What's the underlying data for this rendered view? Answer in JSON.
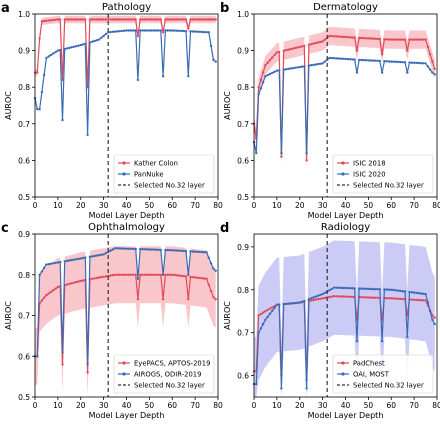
{
  "figure": {
    "x_tick_labels": [
      "0",
      "10",
      "20",
      "30",
      "40",
      "50",
      "60",
      "70",
      "80"
    ],
    "y_tick_labels": [
      "0.5",
      "0.6",
      "0.7",
      "0.8",
      "0.9",
      "1.0"
    ]
  },
  "colors": {
    "red": "#e24a5a",
    "red_band": "#f4a0a8",
    "blue": "#3a6bb5",
    "blue_band": "#a8a8f0",
    "selected_line": "#333333"
  },
  "chart_data": [
    {
      "type": "line",
      "panel_letter": "a",
      "title": "Pathology",
      "xlabel": "Model Layer Depth",
      "ylabel": "AUROC",
      "xlim": [
        0,
        80
      ],
      "ylim": [
        0.5,
        1.0
      ],
      "legend": "bottom-right",
      "grid": false,
      "band_series": "Kather Colon",
      "dip_layers": [
        1,
        12,
        23,
        45,
        56,
        67
      ],
      "selected_layer": 32,
      "selected_label": "Selected No.32 layer",
      "series": [
        {
          "name": "Kather Colon",
          "color_key": "red",
          "knots": [
            [
              0,
              0.84
            ],
            [
              3,
              0.98
            ],
            [
              10,
              0.985
            ],
            [
              20,
              0.985
            ],
            [
              30,
              0.985
            ],
            [
              40,
              0.985
            ],
            [
              60,
              0.985
            ],
            [
              78,
              0.985
            ],
            [
              79,
              0.985
            ]
          ],
          "dips": {
            "1": 0.84,
            "12": 0.82,
            "23": 0.8,
            "45": 0.94,
            "56": 0.95,
            "67": 0.96
          },
          "band": 0.01
        },
        {
          "name": "PanNuke",
          "color_key": "blue",
          "knots": [
            [
              0,
              0.77
            ],
            [
              2,
              0.74
            ],
            [
              5,
              0.88
            ],
            [
              10,
              0.9
            ],
            [
              20,
              0.915
            ],
            [
              28,
              0.93
            ],
            [
              32,
              0.95
            ],
            [
              40,
              0.955
            ],
            [
              60,
              0.955
            ],
            [
              76,
              0.95
            ],
            [
              78,
              0.875
            ],
            [
              79,
              0.87
            ]
          ],
          "dips": {
            "1": 0.74,
            "12": 0.71,
            "23": 0.67,
            "45": 0.82,
            "56": 0.83,
            "67": 0.83
          },
          "band": 0.0
        }
      ]
    },
    {
      "type": "line",
      "panel_letter": "b",
      "title": "Dermatology",
      "xlabel": "Model Layer Depth",
      "ylabel": "AUROC",
      "xlim": [
        0,
        80
      ],
      "ylim": [
        0.5,
        1.0
      ],
      "legend": "bottom-right",
      "grid": false,
      "band_series": "ISIC 2018",
      "dip_layers": [
        1,
        12,
        23,
        45,
        56,
        67
      ],
      "selected_layer": 32,
      "selected_label": "Selected No.32 layer",
      "series": [
        {
          "name": "ISIC 2018",
          "color_key": "red",
          "knots": [
            [
              0,
              0.7
            ],
            [
              2,
              0.8
            ],
            [
              5,
              0.86
            ],
            [
              10,
              0.895
            ],
            [
              20,
              0.91
            ],
            [
              30,
              0.925
            ],
            [
              33,
              0.94
            ],
            [
              45,
              0.935
            ],
            [
              60,
              0.93
            ],
            [
              75,
              0.93
            ],
            [
              78,
              0.87
            ],
            [
              79,
              0.85
            ]
          ],
          "dips": {
            "1": 0.66,
            "12": 0.61,
            "23": 0.6,
            "45": 0.9,
            "56": 0.89,
            "67": 0.9
          },
          "band": 0.025
        },
        {
          "name": "ISIC 2020",
          "color_key": "blue",
          "knots": [
            [
              0,
              0.65
            ],
            [
              2,
              0.78
            ],
            [
              5,
              0.83
            ],
            [
              10,
              0.845
            ],
            [
              20,
              0.855
            ],
            [
              30,
              0.865
            ],
            [
              33,
              0.88
            ],
            [
              45,
              0.875
            ],
            [
              60,
              0.87
            ],
            [
              75,
              0.865
            ],
            [
              78,
              0.84
            ],
            [
              79,
              0.835
            ]
          ],
          "dips": {
            "1": 0.62,
            "12": 0.62,
            "23": 0.62,
            "45": 0.84,
            "56": 0.84,
            "67": 0.84
          },
          "band": 0.0
        }
      ]
    },
    {
      "type": "line",
      "panel_letter": "c",
      "title": "Ophthalmology",
      "xlabel": "Model Layer Depth",
      "ylabel": "AUROC",
      "xlim": [
        0,
        80
      ],
      "ylim": [
        0.5,
        0.9
      ],
      "legend": "bottom-right",
      "grid": false,
      "band_series": "EyePACS, APTOS-2019",
      "dip_layers": [
        1,
        12,
        23,
        45,
        56,
        67
      ],
      "selected_layer": 32,
      "selected_label": "Selected No.32 layer",
      "series": [
        {
          "name": "EyePACS, APTOS-2019",
          "color_key": "red",
          "knots": [
            [
              0,
              0.6
            ],
            [
              2,
              0.73
            ],
            [
              5,
              0.75
            ],
            [
              10,
              0.77
            ],
            [
              20,
              0.785
            ],
            [
              30,
              0.795
            ],
            [
              35,
              0.8
            ],
            [
              60,
              0.8
            ],
            [
              75,
              0.79
            ],
            [
              78,
              0.745
            ],
            [
              79,
              0.74
            ]
          ],
          "dips": {
            "1": 0.6,
            "12": 0.58,
            "23": 0.56,
            "45": 0.74,
            "56": 0.74,
            "67": 0.74
          },
          "band": 0.07
        },
        {
          "name": "AIROGS, ODIR-2019",
          "color_key": "blue",
          "knots": [
            [
              0,
              0.6
            ],
            [
              2,
              0.8
            ],
            [
              5,
              0.825
            ],
            [
              10,
              0.83
            ],
            [
              20,
              0.84
            ],
            [
              30,
              0.85
            ],
            [
              35,
              0.865
            ],
            [
              60,
              0.86
            ],
            [
              75,
              0.855
            ],
            [
              78,
              0.815
            ],
            [
              79,
              0.81
            ]
          ],
          "dips": {
            "1": 0.6,
            "12": 0.61,
            "23": 0.58,
            "45": 0.79,
            "56": 0.8,
            "67": 0.8
          },
          "band": 0.0
        }
      ]
    },
    {
      "type": "line",
      "panel_letter": "d",
      "title": "Radiology",
      "xlabel": "Model Layer Depth",
      "ylabel": "AUROC",
      "xlim": [
        0,
        80
      ],
      "ylim": [
        0.55,
        0.93
      ],
      "legend": "bottom-right",
      "grid": false,
      "band_series": "OAI, MOST",
      "dip_layers": [
        1,
        12,
        23,
        45,
        56,
        67
      ],
      "selected_layer": 32,
      "selected_label": "Selected No.32 layer",
      "series": [
        {
          "name": "PadChest",
          "color_key": "red",
          "knots": [
            [
              0,
              0.61
            ],
            [
              2,
              0.74
            ],
            [
              5,
              0.75
            ],
            [
              10,
              0.765
            ],
            [
              20,
              0.77
            ],
            [
              30,
              0.78
            ],
            [
              35,
              0.785
            ],
            [
              60,
              0.78
            ],
            [
              75,
              0.775
            ],
            [
              78,
              0.74
            ],
            [
              79,
              0.735
            ]
          ],
          "dips": {
            "1": 0.61,
            "12": 0.6,
            "23": 0.59,
            "45": 0.73,
            "56": 0.73,
            "67": 0.74
          },
          "band": 0.0
        },
        {
          "name": "OAI, MOST",
          "color_key": "blue",
          "knots": [
            [
              0,
              0.58
            ],
            [
              2,
              0.7
            ],
            [
              5,
              0.73
            ],
            [
              10,
              0.765
            ],
            [
              20,
              0.77
            ],
            [
              30,
              0.79
            ],
            [
              35,
              0.805
            ],
            [
              60,
              0.8
            ],
            [
              75,
              0.79
            ],
            [
              78,
              0.73
            ],
            [
              79,
              0.72
            ]
          ],
          "dips": {
            "1": 0.58,
            "12": 0.57,
            "23": 0.57,
            "45": 0.68,
            "56": 0.68,
            "67": 0.69
          },
          "band": 0.11
        }
      ]
    }
  ]
}
